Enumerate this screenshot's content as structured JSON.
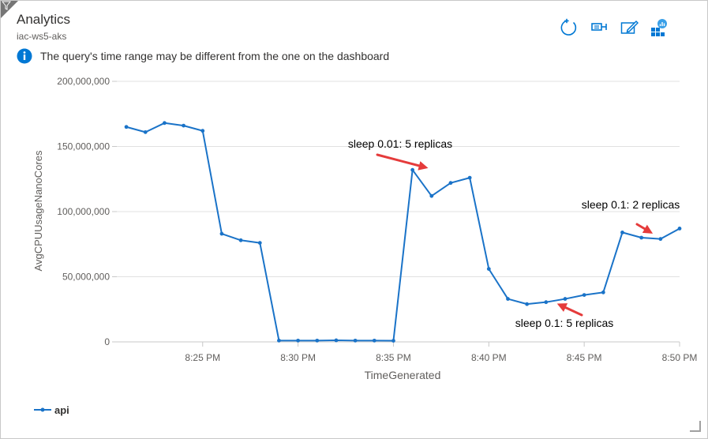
{
  "header": {
    "title": "Analytics",
    "subtitle": "iac-ws5-aks",
    "notice": "The query's time range may be different from the one on the dashboard"
  },
  "toolbar": {
    "icons": [
      "refresh-icon",
      "pin-icon",
      "edit-icon",
      "open-in-analytics-icon"
    ]
  },
  "colors": {
    "series": "#1a73c8",
    "annotation_arrow": "#e53b3b",
    "accent": "#0078d4"
  },
  "chart_data": {
    "type": "line",
    "title": "",
    "xlabel": "TimeGenerated",
    "ylabel": "AvgCPUUsageNanoCores",
    "ylim": [
      0,
      200000000
    ],
    "y_ticks": [
      0,
      50000000,
      100000000,
      150000000,
      200000000
    ],
    "y_tick_labels": [
      "0",
      "50,000,000",
      "100,000,000",
      "150,000,000",
      "200,000,000"
    ],
    "x_range_minutes": [
      20.5,
      50
    ],
    "x_ticks_minutes": [
      25,
      30,
      35,
      40,
      45,
      50
    ],
    "x_tick_labels": [
      "8:25 PM",
      "8:30 PM",
      "8:35 PM",
      "8:40 PM",
      "8:45 PM",
      "8:50 PM"
    ],
    "grid": true,
    "legend_position": "bottom-left",
    "series": [
      {
        "name": "api",
        "x_minutes": [
          21,
          22,
          23,
          24,
          25,
          26,
          27,
          28,
          29,
          30,
          31,
          32,
          33,
          34,
          35,
          36,
          37,
          38,
          39,
          40,
          41,
          42,
          43,
          44,
          45,
          46,
          47,
          48,
          49,
          50
        ],
        "values": [
          165000000,
          161000000,
          168000000,
          166000000,
          162000000,
          83000000,
          78000000,
          76000000,
          1000000,
          1000000,
          1000000,
          1200000,
          1000000,
          1000000,
          900000,
          132000000,
          112000000,
          122000000,
          126000000,
          56000000,
          33000000,
          29000000,
          30500000,
          33000000,
          36000000,
          38000000,
          84000000,
          80000000,
          79000000,
          87000000
        ]
      }
    ],
    "annotations": [
      {
        "text": "sleep 0.01: 5 replicas",
        "target_x_minutes": 37,
        "target_value": 133000000
      },
      {
        "text": "sleep 0.1: 2 replicas",
        "target_x_minutes": 49,
        "target_value": 81000000
      },
      {
        "text": "sleep 0.1: 5 replicas",
        "target_x_minutes": 43.3,
        "target_value": 32000000
      }
    ]
  }
}
